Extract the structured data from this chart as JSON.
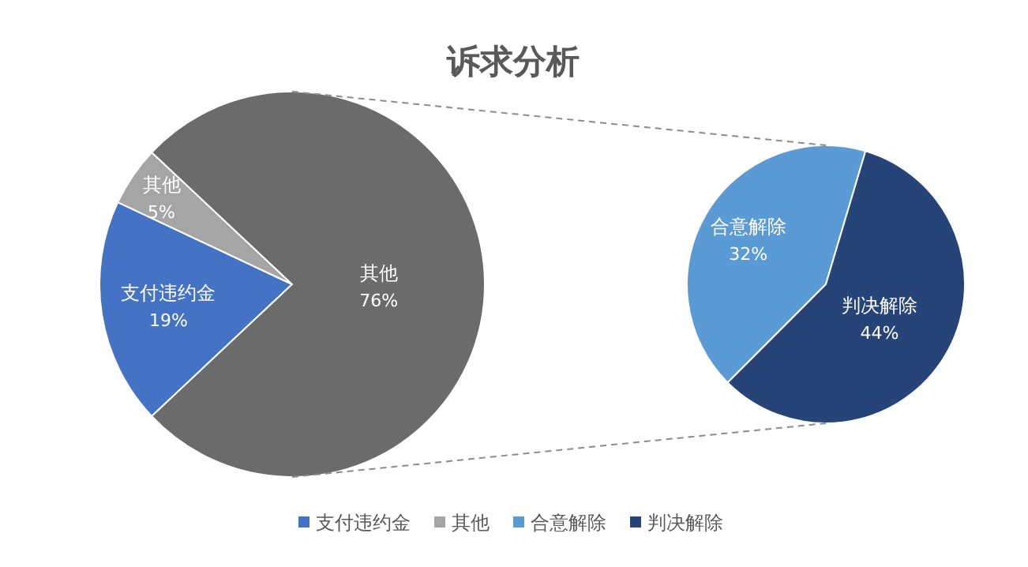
{
  "chart_data": [
    {
      "type": "pie",
      "title": "诉求分析",
      "categories": [
        "支付违约金",
        "其他",
        "其他"
      ],
      "values": [
        19,
        5,
        76
      ],
      "colors": [
        "#4472c4",
        "#a5a5a5",
        "#6b6b6b"
      ],
      "value_labels": [
        "19%",
        "5%",
        "76%"
      ],
      "legend": "bottom"
    },
    {
      "type": "pie",
      "categories": [
        "合意解除",
        "判决解除"
      ],
      "values": [
        32,
        44
      ],
      "colors": [
        "#5b9bd5",
        "#264478"
      ],
      "value_labels": [
        "32%",
        "44%"
      ],
      "legend": "bottom"
    }
  ]
}
